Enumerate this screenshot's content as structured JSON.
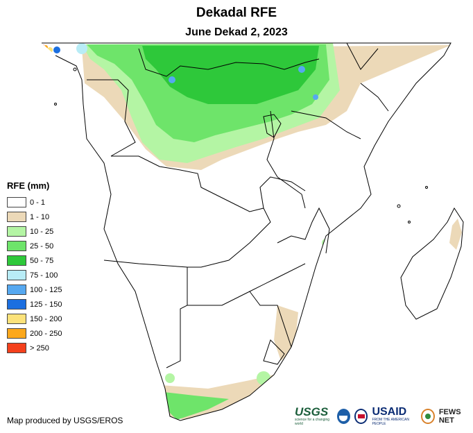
{
  "header": {
    "title": "Dekadal RFE",
    "subtitle": "June Dekad 2, 2023"
  },
  "legend": {
    "title": "RFE (mm)",
    "items": [
      {
        "label": "0 - 1",
        "color": "#ffffff"
      },
      {
        "label": "1 - 10",
        "color": "#ecd9b8"
      },
      {
        "label": "10 - 25",
        "color": "#b4f5a4"
      },
      {
        "label": "25 - 50",
        "color": "#6ee46a"
      },
      {
        "label": "50 - 75",
        "color": "#2ec83a"
      },
      {
        "label": "75 - 100",
        "color": "#b8ecf6"
      },
      {
        "label": "100 - 125",
        "color": "#56a8f0"
      },
      {
        "label": "125 - 150",
        "color": "#1c6fe0"
      },
      {
        "label": "150 - 200",
        "color": "#fce27a"
      },
      {
        "label": "200 - 250",
        "color": "#fca81c"
      },
      {
        "label": "> 250",
        "color": "#f4401c"
      }
    ]
  },
  "footer": {
    "credit": "Map produced by USGS/EROS",
    "logos": {
      "usgs": "USGS",
      "usgs_tagline": "science for a changing world",
      "usaid": "USAID",
      "usaid_tagline": "FROM THE AMERICAN PEOPLE",
      "fews": "FEWS NET"
    }
  },
  "map": {
    "region": "Southern and Central Africa",
    "land_color": "#ffffff",
    "border_color": "#000000"
  }
}
